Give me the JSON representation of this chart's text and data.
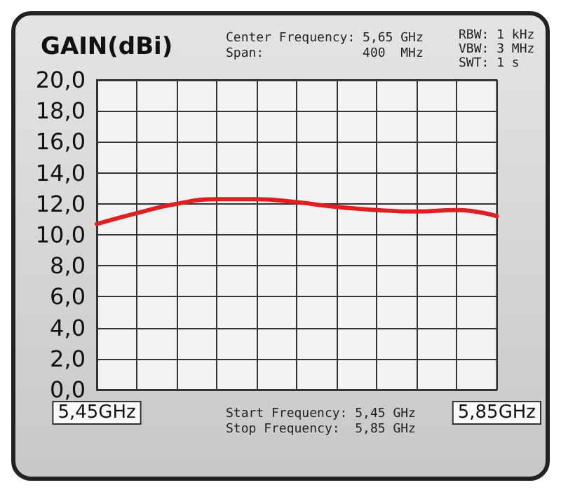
{
  "chart_data": {
    "type": "line",
    "ylabel": "GAIN(dBi)",
    "x": [
      5.45,
      5.49,
      5.53,
      5.57,
      5.61,
      5.65,
      5.69,
      5.73,
      5.77,
      5.81,
      5.85
    ],
    "series": [
      {
        "color": "#e02020",
        "values": [
          10.7,
          11.4,
          12.0,
          12.3,
          12.3,
          12.1,
          11.8,
          11.6,
          11.5,
          11.6,
          11.2
        ]
      }
    ],
    "xlim": [
      5.45,
      5.85
    ],
    "xticks": [
      {
        "value": 5.45,
        "label": "5,45GHz"
      },
      {
        "value": 5.49,
        "label": null
      },
      {
        "value": 5.53,
        "label": null
      },
      {
        "value": 5.57,
        "label": null
      },
      {
        "value": 5.61,
        "label": null
      },
      {
        "value": 5.65,
        "label": null
      },
      {
        "value": 5.69,
        "label": null
      },
      {
        "value": 5.73,
        "label": null
      },
      {
        "value": 5.77,
        "label": null
      },
      {
        "value": 5.81,
        "label": null
      },
      {
        "value": 5.85,
        "label": "5,85GHz"
      }
    ],
    "ylim": [
      0,
      20
    ],
    "yticks": [
      {
        "value": 0,
        "label": "0,0"
      },
      {
        "value": 2,
        "label": "2,0"
      },
      {
        "value": 4,
        "label": "4,0"
      },
      {
        "value": 6,
        "label": "6,0"
      },
      {
        "value": 8,
        "label": "8,0"
      },
      {
        "value": 10,
        "label": "10,0"
      },
      {
        "value": 12,
        "label": "12,0"
      },
      {
        "value": 14,
        "label": "14,0"
      },
      {
        "value": 16,
        "label": "16,0"
      },
      {
        "value": 18,
        "label": "18,0"
      },
      {
        "value": 20,
        "label": "20,0"
      }
    ],
    "grid": true,
    "marker": "none",
    "line_style": "solid",
    "annotations": [
      "Center Frequency: 5,65 GHz",
      "Span:             400  MHz",
      "RBW: 1 kHz",
      "VBW: 3 MHz",
      "SWT: 1 s",
      "Start Frequency: 5,45 GHz",
      "Stop Frequency:  5,85 GHz"
    ]
  }
}
